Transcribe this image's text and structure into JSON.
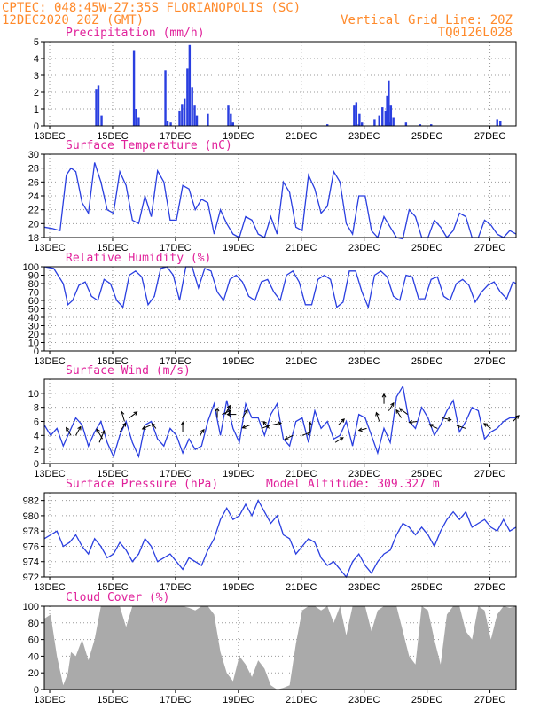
{
  "header": {
    "left_line1": "CPTEC:   048:45W-27:35S  FLORIANOPOLIS (SC)",
    "left_line2": "12DEC2020 20Z (GMT)",
    "right_line1": "Vertical Grid Line: 20Z",
    "right_line2": "TQ0126L028"
  },
  "colors": {
    "header": "#ff8a2b",
    "title": "#e0209a",
    "series": "#2a3fe0",
    "cloud": "#aaaaaa"
  },
  "x_ticks": [
    "13DEC",
    "15DEC",
    "17DEC",
    "19DEC",
    "21DEC",
    "23DEC",
    "25DEC",
    "27DEC"
  ],
  "chart_data": [
    {
      "type": "bar",
      "title": "Precipitation (mm/h)",
      "ylim": [
        0,
        5
      ],
      "yticks": [
        0,
        1,
        2,
        3,
        4,
        5
      ],
      "x_unit": "days since 12DEC2020 20Z",
      "bars": [
        [
          1.65,
          2.2
        ],
        [
          1.72,
          2.4
        ],
        [
          1.82,
          0.6
        ],
        [
          2.85,
          4.5
        ],
        [
          2.92,
          1.0
        ],
        [
          3.0,
          0.5
        ],
        [
          3.85,
          3.3
        ],
        [
          3.92,
          0.3
        ],
        [
          4.02,
          0.2
        ],
        [
          4.3,
          0.9
        ],
        [
          4.38,
          1.3
        ],
        [
          4.46,
          1.6
        ],
        [
          4.55,
          3.4
        ],
        [
          4.62,
          4.8
        ],
        [
          4.7,
          2.3
        ],
        [
          4.78,
          1.2
        ],
        [
          4.85,
          0.6
        ],
        [
          5.2,
          0.7
        ],
        [
          5.85,
          1.2
        ],
        [
          5.93,
          0.7
        ],
        [
          6.0,
          0.2
        ],
        [
          9.0,
          0.1
        ],
        [
          10.0,
          0.1
        ],
        [
          9.85,
          1.2
        ],
        [
          9.92,
          1.4
        ],
        [
          10.02,
          0.7
        ],
        [
          10.65,
          0.6
        ],
        [
          10.75,
          1.1
        ],
        [
          10.85,
          0.9
        ],
        [
          10.1,
          0.2
        ],
        [
          11.0,
          0.2
        ],
        [
          10.5,
          0.4
        ],
        [
          10.9,
          1.8
        ],
        [
          11.95,
          0.1
        ],
        [
          10.95,
          2.7
        ],
        [
          11.02,
          1.2
        ],
        [
          11.1,
          0.5
        ],
        [
          11.5,
          0.2
        ],
        [
          12.3,
          0.1
        ],
        [
          14.4,
          0.4
        ],
        [
          14.5,
          0.3
        ]
      ]
    },
    {
      "type": "line",
      "title": "Surface Temperature (nC)",
      "ylim": [
        18,
        30
      ],
      "yticks": [
        18,
        20,
        22,
        24,
        26,
        28,
        30
      ],
      "x": [
        0,
        0.25,
        0.5,
        0.7,
        0.85,
        1.0,
        1.2,
        1.4,
        1.6,
        1.8,
        2.0,
        2.2,
        2.4,
        2.6,
        2.8,
        3.0,
        3.2,
        3.4,
        3.6,
        3.8,
        4.0,
        4.2,
        4.4,
        4.6,
        4.8,
        5.0,
        5.2,
        5.4,
        5.6,
        5.8,
        6.0,
        6.2,
        6.4,
        6.6,
        6.8,
        7.0,
        7.2,
        7.4,
        7.6,
        7.8,
        8.0,
        8.2,
        8.4,
        8.6,
        8.8,
        9.0,
        9.2,
        9.4,
        9.6,
        9.8,
        10.0,
        10.2,
        10.4,
        10.6,
        10.8,
        11.0,
        11.2,
        11.4,
        11.6,
        11.8,
        12.0,
        12.2,
        12.4,
        12.6,
        12.8,
        13.0,
        13.2,
        13.4,
        13.6,
        13.8,
        14.0,
        14.2,
        14.4,
        14.6,
        14.8,
        15.0
      ],
      "values": [
        19.5,
        19.3,
        19.0,
        27.0,
        28.0,
        27.5,
        23.0,
        21.5,
        28.8,
        26.0,
        22.0,
        21.5,
        27.5,
        25.5,
        20.5,
        20.0,
        24.0,
        21.0,
        27.6,
        26.0,
        20.5,
        20.5,
        25.5,
        25.0,
        22.0,
        23.5,
        23.0,
        18.5,
        22.0,
        20.0,
        18.5,
        18.0,
        21.0,
        20.5,
        18.5,
        18.0,
        21.0,
        18.5,
        26.0,
        24.5,
        19.5,
        19.0,
        27.0,
        25.0,
        21.5,
        22.5,
        27.5,
        26.0,
        20.0,
        18.5,
        24.0,
        24.0,
        19.0,
        18.0,
        21.0,
        19.5,
        18.0,
        17.8,
        22.0,
        21.0,
        18.0,
        18.0,
        20.5,
        19.5,
        18.0,
        19.0,
        21.5,
        21.0,
        18.0,
        18.0,
        20.5,
        19.8,
        18.5,
        18.0,
        19.0,
        18.5
      ]
    },
    {
      "type": "line",
      "title": "Relative Humidity (%)",
      "ylim": [
        0,
        100
      ],
      "yticks": [
        0,
        10,
        20,
        30,
        40,
        50,
        60,
        70,
        80,
        90,
        100
      ],
      "x": [
        0,
        0.3,
        0.6,
        0.75,
        0.9,
        1.1,
        1.3,
        1.5,
        1.7,
        1.9,
        2.1,
        2.3,
        2.5,
        2.7,
        2.9,
        3.1,
        3.3,
        3.5,
        3.7,
        3.9,
        4.1,
        4.3,
        4.5,
        4.7,
        4.9,
        5.1,
        5.3,
        5.5,
        5.7,
        5.9,
        6.1,
        6.3,
        6.5,
        6.7,
        6.9,
        7.1,
        7.3,
        7.5,
        7.7,
        7.9,
        8.1,
        8.3,
        8.5,
        8.7,
        8.9,
        9.1,
        9.3,
        9.5,
        9.7,
        9.9,
        10.1,
        10.3,
        10.5,
        10.7,
        10.9,
        11.1,
        11.3,
        11.5,
        11.7,
        11.9,
        12.1,
        12.3,
        12.5,
        12.7,
        12.9,
        13.1,
        13.3,
        13.5,
        13.7,
        13.9,
        14.1,
        14.3,
        14.5,
        14.7,
        14.9,
        15.0
      ],
      "values": [
        100,
        98,
        80,
        55,
        60,
        78,
        82,
        65,
        60,
        85,
        80,
        60,
        52,
        90,
        95,
        88,
        55,
        65,
        98,
        100,
        90,
        60,
        100,
        100,
        75,
        98,
        95,
        70,
        60,
        85,
        90,
        82,
        65,
        60,
        82,
        85,
        70,
        60,
        90,
        95,
        82,
        55,
        55,
        85,
        90,
        85,
        52,
        58,
        95,
        95,
        70,
        52,
        90,
        95,
        88,
        65,
        60,
        90,
        88,
        62,
        62,
        85,
        88,
        65,
        60,
        80,
        85,
        78,
        58,
        70,
        78,
        82,
        70,
        62,
        82,
        80
      ]
    },
    {
      "type": "line",
      "title": "Surface Wind (m/s)",
      "ylim": [
        0,
        12
      ],
      "yticks": [
        0,
        2,
        4,
        6,
        8,
        10
      ],
      "x": [
        0,
        0.2,
        0.4,
        0.6,
        0.8,
        1.0,
        1.2,
        1.4,
        1.6,
        1.8,
        2.0,
        2.2,
        2.4,
        2.6,
        2.8,
        3.0,
        3.2,
        3.4,
        3.6,
        3.8,
        4.0,
        4.2,
        4.4,
        4.6,
        4.8,
        5.0,
        5.2,
        5.4,
        5.6,
        5.8,
        6.0,
        6.2,
        6.4,
        6.6,
        6.8,
        7.0,
        7.2,
        7.4,
        7.6,
        7.8,
        8.0,
        8.2,
        8.4,
        8.6,
        8.8,
        9.0,
        9.2,
        9.4,
        9.6,
        9.8,
        10.0,
        10.2,
        10.4,
        10.6,
        10.8,
        11.0,
        11.2,
        11.4,
        11.6,
        11.8,
        12.0,
        12.2,
        12.4,
        12.6,
        12.8,
        13.0,
        13.2,
        13.4,
        13.6,
        13.8,
        14.0,
        14.2,
        14.4,
        14.6,
        14.8,
        15.0
      ],
      "values": [
        5.5,
        4.0,
        5.0,
        2.5,
        4.5,
        6.5,
        5.5,
        2.5,
        4.5,
        6.0,
        3.0,
        1.0,
        4.0,
        6.0,
        3.0,
        1.0,
        5.5,
        6.0,
        3.5,
        2.5,
        5.0,
        4.0,
        1.5,
        3.5,
        2.0,
        2.5,
        6.0,
        8.5,
        4.0,
        9.0,
        5.0,
        3.0,
        8.5,
        6.5,
        6.5,
        4.0,
        7.0,
        8.5,
        3.5,
        2.5,
        6.0,
        6.5,
        3.0,
        7.5,
        5.0,
        6.0,
        3.5,
        4.0,
        6.0,
        2.5,
        7.0,
        6.5,
        4.0,
        1.5,
        5.0,
        3.0,
        9.5,
        11.0,
        6.0,
        5.0,
        8.0,
        6.5,
        4.0,
        5.5,
        7.5,
        9.0,
        4.5,
        6.0,
        8.0,
        7.5,
        3.5,
        4.5,
        5.0,
        6.0,
        6.5,
        6.5
      ],
      "arrows": [
        [
          0.85,
          4.0,
          -0.5,
          0.8
        ],
        [
          1.0,
          4.0,
          0.5,
          0.9
        ],
        [
          1.75,
          3.0,
          0.5,
          1.2
        ],
        [
          1.85,
          3.5,
          -0.6,
          1.0
        ],
        [
          2.4,
          4.5,
          0.6,
          0.9
        ],
        [
          2.55,
          6.0,
          -0.3,
          1.0
        ],
        [
          2.7,
          6.5,
          0.8,
          0.6
        ],
        [
          3.4,
          5.5,
          -0.9,
          -0.4
        ],
        [
          3.55,
          5.0,
          -0.4,
          0.5
        ],
        [
          4.4,
          4.5,
          0.0,
          1.0
        ],
        [
          4.95,
          4.0,
          0.4,
          0.6
        ],
        [
          5.5,
          6.5,
          0.0,
          1.0
        ],
        [
          5.65,
          7.0,
          0.9,
          0.4
        ],
        [
          5.75,
          7.0,
          0.5,
          0.9
        ],
        [
          6.1,
          7.0,
          -0.9,
          0.0
        ],
        [
          6.3,
          6.5,
          0.5,
          0.8
        ],
        [
          6.55,
          5.5,
          -0.8,
          -0.3
        ],
        [
          6.9,
          5.0,
          0.8,
          0.3
        ],
        [
          7.15,
          5.0,
          -0.6,
          0.7
        ],
        [
          7.25,
          5.5,
          0.9,
          0.2
        ],
        [
          7.9,
          4.0,
          -0.8,
          -0.4
        ],
        [
          8.2,
          4.0,
          0.8,
          0.3
        ],
        [
          8.45,
          4.5,
          0.0,
          1.0
        ],
        [
          9.25,
          3.0,
          0.8,
          0.5
        ],
        [
          9.35,
          5.5,
          0.6,
          0.6
        ],
        [
          10.25,
          5.0,
          -0.8,
          -0.2
        ],
        [
          10.65,
          6.0,
          -0.3,
          0.9
        ],
        [
          10.8,
          8.5,
          0.0,
          1.0
        ],
        [
          10.95,
          7.5,
          0.5,
          0.8
        ],
        [
          11.35,
          6.5,
          -0.5,
          0.8
        ],
        [
          11.55,
          7.0,
          -0.8,
          0.6
        ],
        [
          11.85,
          6.0,
          -0.8,
          -0.1
        ],
        [
          12.5,
          5.0,
          -0.8,
          0.4
        ],
        [
          12.65,
          6.5,
          0.9,
          -0.2
        ],
        [
          13.4,
          5.0,
          -0.9,
          0.3
        ],
        [
          14.2,
          5.0,
          -0.7,
          0.5
        ],
        [
          14.9,
          6.0,
          0.6,
          0.6
        ]
      ]
    },
    {
      "type": "line",
      "title": "Surface Pressure (hPa)",
      "annotation": "Model Altitude: 309.327 m",
      "ylim": [
        972,
        983
      ],
      "yticks": [
        972,
        974,
        976,
        978,
        980,
        982
      ],
      "x": [
        0,
        0.2,
        0.4,
        0.6,
        0.8,
        1.0,
        1.2,
        1.4,
        1.6,
        1.8,
        2.0,
        2.2,
        2.4,
        2.6,
        2.8,
        3.0,
        3.2,
        3.4,
        3.6,
        3.8,
        4.0,
        4.2,
        4.4,
        4.6,
        4.8,
        5.0,
        5.2,
        5.4,
        5.6,
        5.8,
        6.0,
        6.2,
        6.4,
        6.6,
        6.8,
        7.0,
        7.2,
        7.4,
        7.6,
        7.8,
        8.0,
        8.2,
        8.4,
        8.6,
        8.8,
        9.0,
        9.2,
        9.4,
        9.6,
        9.8,
        10.0,
        10.2,
        10.4,
        10.6,
        10.8,
        11.0,
        11.2,
        11.4,
        11.6,
        11.8,
        12.0,
        12.2,
        12.4,
        12.6,
        12.8,
        13.0,
        13.2,
        13.4,
        13.6,
        13.8,
        14.0,
        14.2,
        14.4,
        14.6,
        14.8,
        15.0
      ],
      "values": [
        977.0,
        977.5,
        978.0,
        976.0,
        976.5,
        977.5,
        976.0,
        975.0,
        977.0,
        976.0,
        974.5,
        975.0,
        976.5,
        975.5,
        974.0,
        975.0,
        977.0,
        976.0,
        974.0,
        974.5,
        975.0,
        974.0,
        973.0,
        974.5,
        974.0,
        973.5,
        975.5,
        977.0,
        979.5,
        981.0,
        979.5,
        980.0,
        981.5,
        980.0,
        982.0,
        980.5,
        979.0,
        980.0,
        977.5,
        977.0,
        975.0,
        976.0,
        977.0,
        976.5,
        974.5,
        973.5,
        974.0,
        973.0,
        972.0,
        974.0,
        975.0,
        973.5,
        972.5,
        974.0,
        975.0,
        975.5,
        977.5,
        979.0,
        978.5,
        977.5,
        978.5,
        977.5,
        976.0,
        978.0,
        979.5,
        980.5,
        979.5,
        980.5,
        978.5,
        979.0,
        979.5,
        978.5,
        978.0,
        979.5,
        978.0,
        978.5
      ]
    },
    {
      "type": "area",
      "title": "Cloud Cover (%)",
      "ylim": [
        0,
        100
      ],
      "yticks": [
        0,
        20,
        40,
        60,
        80,
        100
      ],
      "x": [
        0,
        0.2,
        0.4,
        0.6,
        0.75,
        0.85,
        1.0,
        1.2,
        1.4,
        1.6,
        1.8,
        2.0,
        2.2,
        2.4,
        2.6,
        2.8,
        3.0,
        3.2,
        3.4,
        3.6,
        3.8,
        4.0,
        4.2,
        4.4,
        4.6,
        4.8,
        5.0,
        5.2,
        5.4,
        5.6,
        5.8,
        6.0,
        6.2,
        6.4,
        6.6,
        6.8,
        7.0,
        7.2,
        7.4,
        7.6,
        7.8,
        8.0,
        8.2,
        8.4,
        8.6,
        8.8,
        9.0,
        9.2,
        9.4,
        9.6,
        9.8,
        10.0,
        10.2,
        10.4,
        10.6,
        10.8,
        11.0,
        11.2,
        11.4,
        11.6,
        11.8,
        12.0,
        12.2,
        12.4,
        12.6,
        12.8,
        13.0,
        13.2,
        13.4,
        13.6,
        13.8,
        14.0,
        14.2,
        14.4,
        14.6,
        14.8,
        15.0
      ],
      "values": [
        85,
        90,
        40,
        5,
        20,
        45,
        40,
        60,
        35,
        60,
        100,
        100,
        100,
        100,
        75,
        100,
        100,
        100,
        100,
        100,
        100,
        100,
        100,
        100,
        98,
        95,
        100,
        100,
        90,
        45,
        20,
        10,
        40,
        30,
        15,
        35,
        25,
        5,
        0,
        2,
        5,
        55,
        95,
        100,
        100,
        95,
        100,
        80,
        100,
        65,
        100,
        100,
        100,
        70,
        95,
        100,
        100,
        100,
        70,
        40,
        30,
        100,
        95,
        60,
        30,
        90,
        100,
        100,
        70,
        60,
        100,
        95,
        60,
        90,
        100,
        98,
        100
      ]
    }
  ]
}
